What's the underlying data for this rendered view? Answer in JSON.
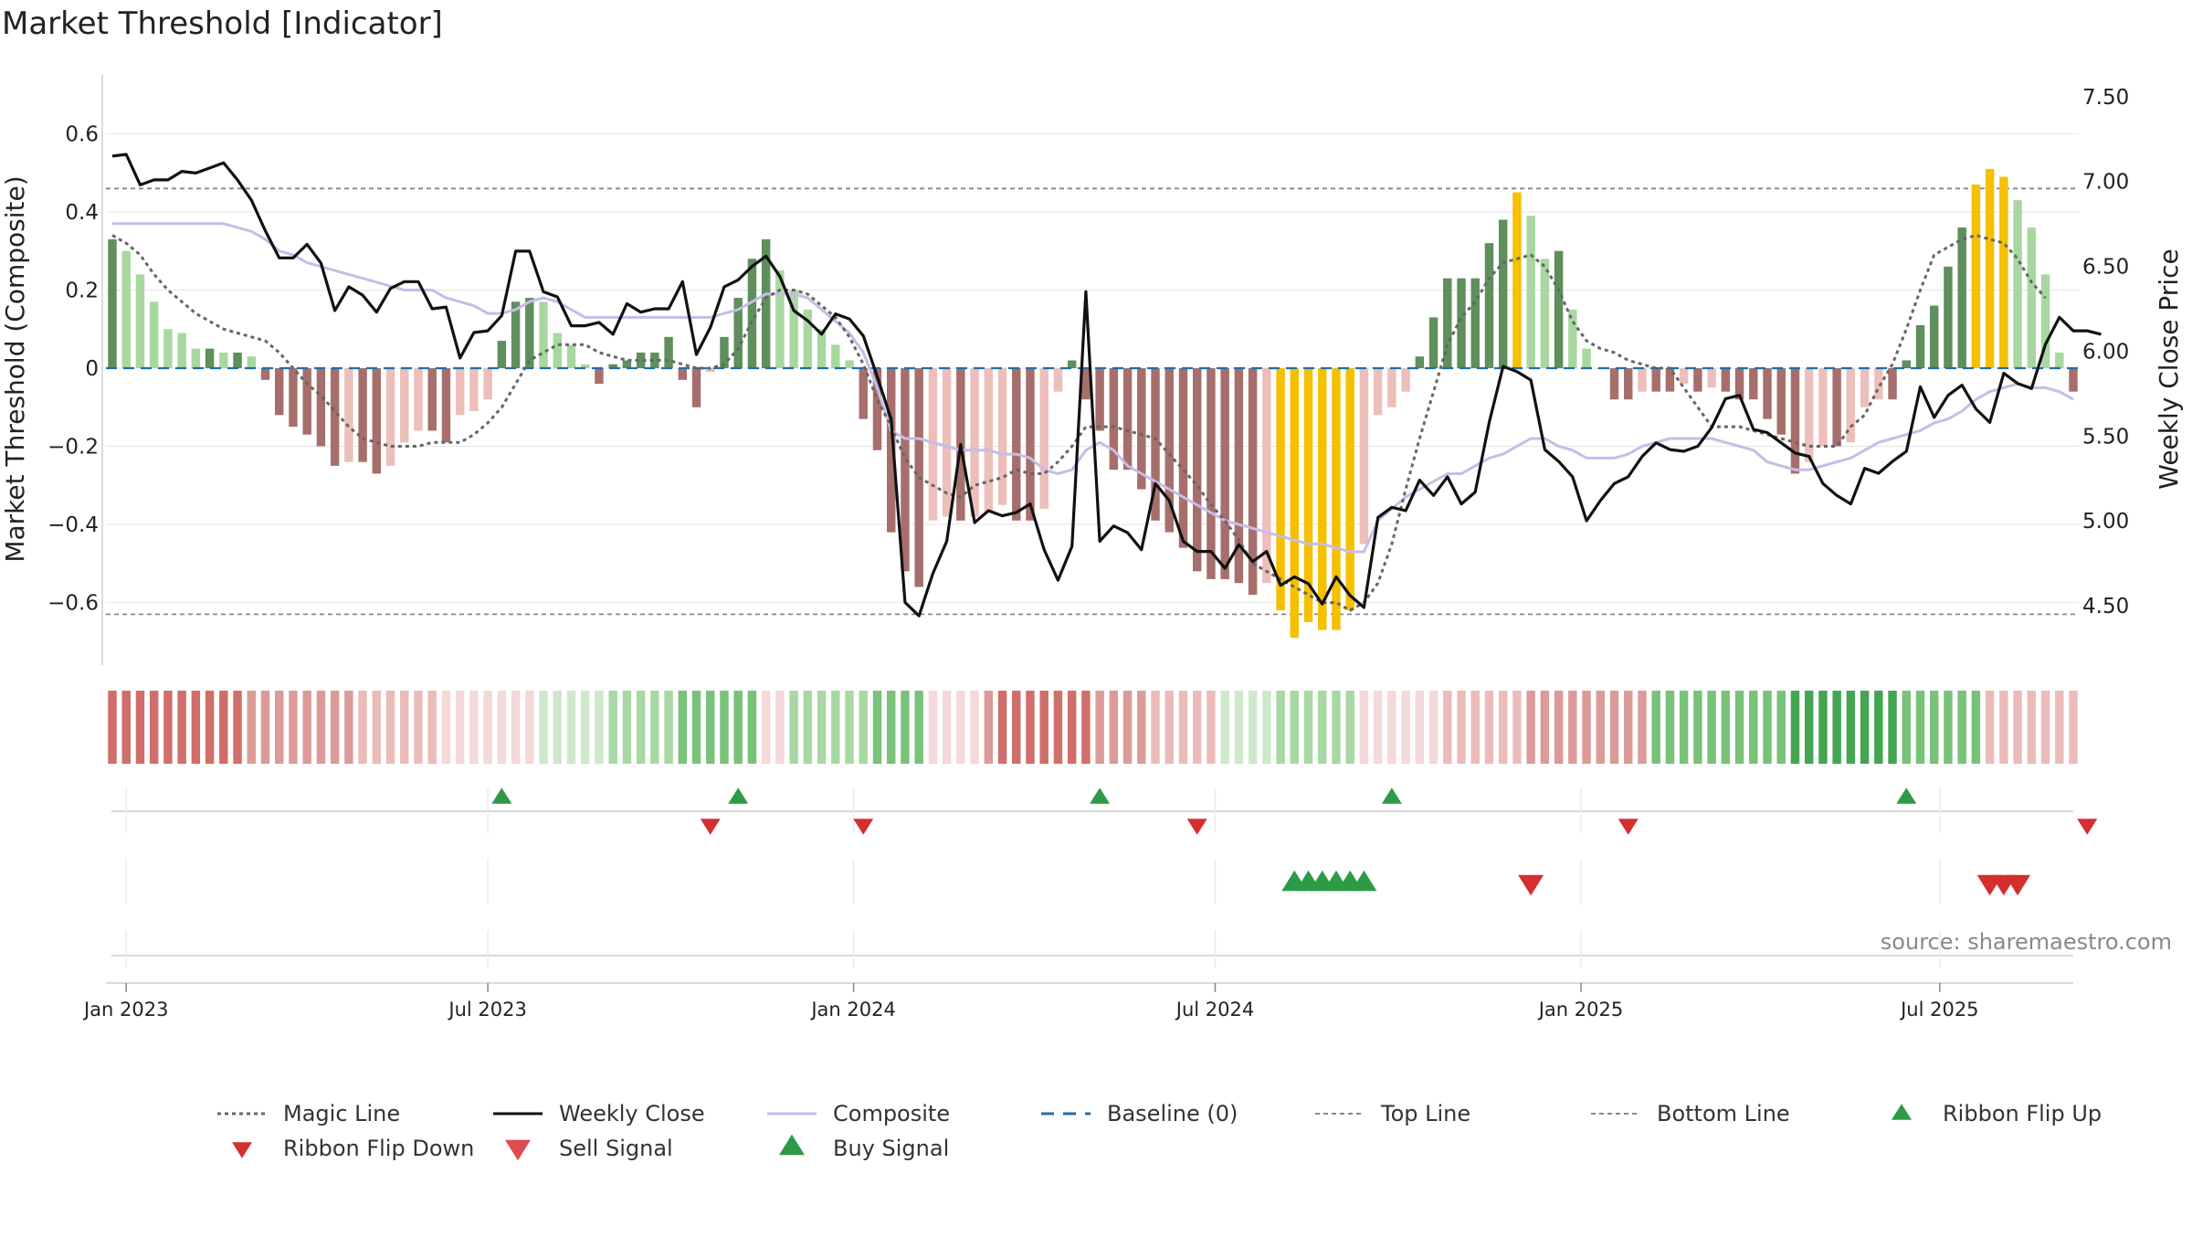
{
  "title": "Market Threshold [Indicator]",
  "source": "source: sharemaestro.com",
  "colors": {
    "bar_light_green": "#a8d8a0",
    "bar_dark_green": "#5e8f5c",
    "bar_light_red": "#ecbfba",
    "bar_dark_red": "#a66f6c",
    "bar_gold": "#f5c000",
    "weekly_close": "#111111",
    "composite": "#c5bde8",
    "magic_line": "#666666",
    "baseline": "#1f6fa8",
    "threshold_lines": "#888888",
    "triangle_green": "#2e9a48",
    "triangle_red": "#d32f2f"
  },
  "chart_data": {
    "type": "bar",
    "left_axis": {
      "label": "Market Threshold (Composite)",
      "ticks": [
        0.6,
        0.4,
        0.2,
        0,
        -0.2,
        -0.4,
        -0.6
      ],
      "tick_labels": [
        "0.6",
        "0.4",
        "0.2",
        "0",
        "−0.2",
        "−0.4",
        "−0.6"
      ],
      "ylim": [
        -0.76,
        0.76
      ]
    },
    "right_axis": {
      "label": "Weekly Close Price",
      "ticks": [
        7.5,
        7.0,
        6.5,
        6.0,
        5.5,
        5.0,
        4.5
      ],
      "tick_labels": [
        "7.50",
        "7.00",
        "6.50",
        "6.00",
        "5.50",
        "5.00",
        "4.50"
      ],
      "ylim": [
        4.15,
        7.65
      ]
    },
    "x_axis": {
      "start": "2022-12-26",
      "weeks": 144,
      "ticks": [
        {
          "label": "Jan 2023",
          "week": 1
        },
        {
          "label": "Jul 2023",
          "week": 27
        },
        {
          "label": "Jan 2024",
          "week": 53.3
        },
        {
          "label": "Jul 2024",
          "week": 79.3
        },
        {
          "label": "Jan 2025",
          "week": 105.6
        },
        {
          "label": "Jul 2025",
          "week": 131.4
        }
      ]
    },
    "top_line": 0.46,
    "bottom_line": -0.63,
    "baseline": 0,
    "composite_bars": [
      0.33,
      0.3,
      0.24,
      0.17,
      0.1,
      0.09,
      0.05,
      0.05,
      0.04,
      0.04,
      0.03,
      -0.03,
      -0.12,
      -0.15,
      -0.17,
      -0.2,
      -0.25,
      -0.24,
      -0.24,
      -0.27,
      -0.25,
      -0.19,
      -0.16,
      -0.16,
      -0.19,
      -0.12,
      -0.11,
      -0.08,
      0.07,
      0.17,
      0.18,
      0.17,
      0.09,
      0.06,
      0.01,
      -0.04,
      0.01,
      0.02,
      0.04,
      0.04,
      0.08,
      -0.03,
      -0.1,
      -0.01,
      0.08,
      0.18,
      0.28,
      0.33,
      0.25,
      0.2,
      0.15,
      0.1,
      0.06,
      0.02,
      -0.13,
      -0.21,
      -0.42,
      -0.52,
      -0.56,
      -0.39,
      -0.38,
      -0.39,
      -0.38,
      -0.37,
      -0.35,
      -0.39,
      -0.39,
      -0.36,
      -0.06,
      0.02,
      -0.08,
      -0.16,
      -0.26,
      -0.26,
      -0.31,
      -0.39,
      -0.42,
      -0.46,
      -0.52,
      -0.54,
      -0.54,
      -0.55,
      -0.58,
      -0.55,
      -0.62,
      -0.69,
      -0.65,
      -0.67,
      -0.67,
      -0.62,
      -0.45,
      -0.12,
      -0.1,
      -0.06,
      0.03,
      0.13,
      0.23,
      0.23,
      0.23,
      0.32,
      0.38,
      0.45,
      0.39,
      0.28,
      0.3,
      0.15,
      0.05,
      0,
      -0.08,
      -0.08,
      -0.06,
      -0.06,
      -0.06,
      -0.04,
      -0.06,
      -0.05,
      -0.06,
      -0.08,
      -0.08,
      -0.13,
      -0.17,
      -0.27,
      -0.24,
      -0.2,
      -0.2,
      -0.19,
      -0.1,
      -0.08,
      -0.08,
      0.02,
      0.11,
      0.16,
      0.26,
      0.36,
      0.47,
      0.51,
      0.49,
      0.43,
      0.36,
      0.24,
      0.04,
      -0.06
    ],
    "bar_styles": "aaaaaaddddaaaDbbbbbbbbbbaaaaaccccaaaaDaaaaDbbbcDDbcDDccccDbbbbbbbbbbbbbbbbbbbbbbbbbbbbbbbbbbbbbbbbbbbbbbcccccccccccccccccccccccccDaaaaaaaaaaaa",
    "weekly_close": [
      7.15,
      7.16,
      6.98,
      7.01,
      7.01,
      7.06,
      7.05,
      7.08,
      7.11,
      7.01,
      6.89,
      6.71,
      6.55,
      6.55,
      6.63,
      6.52,
      6.24,
      6.38,
      6.33,
      6.23,
      6.37,
      6.41,
      6.41,
      6.25,
      6.26,
      5.96,
      6.11,
      6.12,
      6.21,
      6.59,
      6.59,
      6.35,
      6.32,
      6.15,
      6.15,
      6.17,
      6.1,
      6.28,
      6.23,
      6.25,
      6.25,
      6.41,
      5.98,
      6.14,
      6.38,
      6.42,
      6.5,
      6.56,
      6.44,
      6.24,
      6.18,
      6.1,
      6.22,
      6.19,
      6.09,
      5.85,
      5.6,
      4.52,
      4.44,
      4.69,
      4.88,
      5.45,
      4.99,
      5.06,
      5.03,
      5.05,
      5.1,
      4.83,
      4.65,
      4.85,
      6.35,
      4.88,
      4.97,
      4.93,
      4.83,
      5.22,
      5.12,
      4.88,
      4.82,
      4.82,
      4.72,
      4.86,
      4.76,
      4.82,
      4.62,
      4.67,
      4.63,
      4.51,
      4.67,
      4.56,
      4.49,
      5.02,
      5.08,
      5.06,
      5.24,
      5.15,
      5.26,
      5.1,
      5.17,
      5.58,
      5.91,
      5.88,
      5.83,
      5.42,
      5.35,
      5.26,
      5.0,
      5.12,
      5.22,
      5.26,
      5.38,
      5.46,
      5.42,
      5.41,
      5.44,
      5.55,
      5.72,
      5.74,
      5.54,
      5.52,
      5.46,
      5.4,
      5.38,
      5.22,
      5.15,
      5.1,
      5.31,
      5.28,
      5.35,
      5.41,
      5.79,
      5.61,
      5.74,
      5.8,
      5.66,
      5.58,
      5.87,
      5.81,
      5.78,
      6.04,
      6.2,
      6.12,
      6.12,
      6.1
    ],
    "composite_line": [
      0.37,
      0.37,
      0.37,
      0.37,
      0.37,
      0.37,
      0.37,
      0.37,
      0.37,
      0.36,
      0.35,
      0.33,
      0.3,
      0.29,
      0.27,
      0.26,
      0.25,
      0.24,
      0.23,
      0.22,
      0.21,
      0.2,
      0.2,
      0.2,
      0.18,
      0.17,
      0.16,
      0.14,
      0.14,
      0.15,
      0.17,
      0.18,
      0.17,
      0.15,
      0.13,
      0.13,
      0.13,
      0.13,
      0.13,
      0.13,
      0.13,
      0.13,
      0.13,
      0.13,
      0.14,
      0.15,
      0.17,
      0.19,
      0.19,
      0.19,
      0.18,
      0.15,
      0.12,
      0.09,
      0.04,
      -0.05,
      -0.16,
      -0.18,
      -0.18,
      -0.19,
      -0.2,
      -0.21,
      -0.21,
      -0.21,
      -0.22,
      -0.22,
      -0.23,
      -0.26,
      -0.27,
      -0.26,
      -0.21,
      -0.19,
      -0.21,
      -0.25,
      -0.27,
      -0.29,
      -0.31,
      -0.33,
      -0.35,
      -0.37,
      -0.39,
      -0.4,
      -0.41,
      -0.42,
      -0.43,
      -0.44,
      -0.45,
      -0.45,
      -0.46,
      -0.47,
      -0.47,
      -0.39,
      -0.36,
      -0.33,
      -0.31,
      -0.29,
      -0.27,
      -0.27,
      -0.25,
      -0.23,
      -0.22,
      -0.2,
      -0.18,
      -0.18,
      -0.2,
      -0.21,
      -0.23,
      -0.23,
      -0.23,
      -0.22,
      -0.2,
      -0.19,
      -0.18,
      -0.18,
      -0.18,
      -0.18,
      -0.19,
      -0.2,
      -0.21,
      -0.24,
      -0.25,
      -0.26,
      -0.26,
      -0.25,
      -0.24,
      -0.23,
      -0.21,
      -0.19,
      -0.18,
      -0.17,
      -0.16,
      -0.14,
      -0.13,
      -0.11,
      -0.08,
      -0.06,
      -0.05,
      -0.04,
      -0.05,
      -0.05,
      -0.06,
      -0.08
    ],
    "magic_line": [
      0.34,
      0.32,
      0.29,
      0.24,
      0.2,
      0.17,
      0.14,
      0.12,
      0.1,
      0.09,
      0.08,
      0.07,
      0.04,
      0,
      -0.04,
      -0.07,
      -0.11,
      -0.15,
      -0.18,
      -0.19,
      -0.2,
      -0.2,
      -0.2,
      -0.19,
      -0.19,
      -0.19,
      -0.17,
      -0.14,
      -0.1,
      -0.04,
      0.02,
      0.04,
      0.06,
      0.06,
      0.06,
      0.04,
      0.03,
      0.02,
      0.02,
      0.02,
      0.02,
      0.01,
      0,
      0,
      0.01,
      0.05,
      0.12,
      0.18,
      0.2,
      0.2,
      0.19,
      0.16,
      0.13,
      0.08,
      0.01,
      -0.08,
      -0.15,
      -0.23,
      -0.28,
      -0.3,
      -0.32,
      -0.33,
      -0.3,
      -0.29,
      -0.28,
      -0.26,
      -0.27,
      -0.27,
      -0.24,
      -0.2,
      -0.15,
      -0.15,
      -0.15,
      -0.16,
      -0.17,
      -0.18,
      -0.22,
      -0.26,
      -0.3,
      -0.35,
      -0.39,
      -0.44,
      -0.5,
      -0.52,
      -0.54,
      -0.56,
      -0.58,
      -0.6,
      -0.6,
      -0.62,
      -0.6,
      -0.55,
      -0.45,
      -0.31,
      -0.18,
      -0.06,
      0.06,
      0.13,
      0.17,
      0.23,
      0.27,
      0.28,
      0.29,
      0.26,
      0.2,
      0.12,
      0.07,
      0.05,
      0.04,
      0.02,
      0.01,
      0,
      0,
      -0.05,
      -0.1,
      -0.15,
      -0.15,
      -0.15,
      -0.16,
      -0.17,
      -0.18,
      -0.19,
      -0.2,
      -0.2,
      -0.2,
      -0.15,
      -0.12,
      -0.05,
      0.01,
      0.1,
      0.2,
      0.29,
      0.31,
      0.33,
      0.34,
      0.33,
      0.32,
      0.28,
      0.22,
      0.18
    ],
    "ribbon_levels": "ddddddddddccccccccbbbbbbaaaaaaaAAAAABBBBBCCCCCCaaBBBBBBCCCCaaaacdddddddccccbbbbbAAAABBBBBBaaaaaabbbbbbcccccccccCCCCCCCCCCDDDDDDDDCCCCCCbbbbbbbbbbbbbbbbbbbbbbbbAAAABBBBBBBBBBBBBBCCC",
    "ribbon_flip_up_weeks": [
      28,
      45,
      71,
      92,
      129
    ],
    "ribbon_flip_down_weeks": [
      43,
      54,
      78,
      109,
      142
    ],
    "buy_signal_weeks": [
      85,
      86,
      87,
      88,
      89,
      90
    ],
    "sell_signal_weeks": [
      102,
      135,
      136,
      137
    ],
    "legend": [
      {
        "label": "Magic Line",
        "style": "dotted-line"
      },
      {
        "label": "Weekly Close",
        "style": "solid-black"
      },
      {
        "label": "Composite",
        "style": "solid-lavender"
      },
      {
        "label": "Baseline (0)",
        "style": "dashed-blue"
      },
      {
        "label": "Top Line",
        "style": "dashed-gray"
      },
      {
        "label": "Bottom Line",
        "style": "dashed-gray"
      },
      {
        "label": "Ribbon Flip Up",
        "style": "triangle-up-green"
      },
      {
        "label": "Ribbon Flip Down",
        "style": "triangle-down-red"
      },
      {
        "label": "Sell Signal",
        "style": "triangle-down-red-large"
      },
      {
        "label": "Buy Signal",
        "style": "triangle-up-green-large"
      }
    ]
  }
}
